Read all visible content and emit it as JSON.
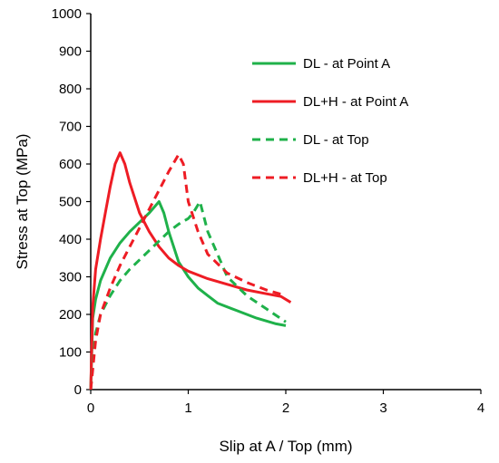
{
  "chart_data": {
    "type": "line",
    "title": "",
    "xlabel": "Slip at A / Top (mm)",
    "ylabel": "Stress  at Top (MPa)",
    "xlim": [
      0,
      4
    ],
    "ylim": [
      0,
      1000
    ],
    "x_ticks": [
      0,
      1,
      2,
      3,
      4
    ],
    "y_ticks": [
      0,
      100,
      200,
      300,
      400,
      500,
      600,
      700,
      800,
      900,
      1000
    ],
    "grid": false,
    "legend_position": "top-right",
    "series": [
      {
        "name": "DL - at Point A",
        "color": "#1FB14A",
        "dash": "solid",
        "points": [
          [
            0,
            0
          ],
          [
            0.02,
            190
          ],
          [
            0.05,
            240
          ],
          [
            0.1,
            290
          ],
          [
            0.2,
            350
          ],
          [
            0.3,
            390
          ],
          [
            0.4,
            420
          ],
          [
            0.5,
            445
          ],
          [
            0.6,
            470
          ],
          [
            0.7,
            500
          ],
          [
            0.75,
            470
          ],
          [
            0.8,
            420
          ],
          [
            0.9,
            340
          ],
          [
            1.0,
            300
          ],
          [
            1.1,
            270
          ],
          [
            1.2,
            250
          ],
          [
            1.3,
            230
          ],
          [
            1.5,
            210
          ],
          [
            1.7,
            190
          ],
          [
            1.9,
            175
          ],
          [
            2.0,
            170
          ]
        ]
      },
      {
        "name": "DL+H - at Point A",
        "color": "#EE1C24",
        "dash": "solid",
        "points": [
          [
            0,
            0
          ],
          [
            0.02,
            220
          ],
          [
            0.05,
            320
          ],
          [
            0.1,
            400
          ],
          [
            0.15,
            470
          ],
          [
            0.2,
            540
          ],
          [
            0.25,
            600
          ],
          [
            0.3,
            630
          ],
          [
            0.35,
            600
          ],
          [
            0.4,
            550
          ],
          [
            0.5,
            470
          ],
          [
            0.6,
            420
          ],
          [
            0.7,
            380
          ],
          [
            0.8,
            350
          ],
          [
            0.9,
            330
          ],
          [
            1.0,
            315
          ],
          [
            1.2,
            295
          ],
          [
            1.4,
            280
          ],
          [
            1.6,
            265
          ],
          [
            1.8,
            255
          ],
          [
            1.95,
            248
          ],
          [
            2.05,
            232
          ]
        ]
      },
      {
        "name": "DL - at Top",
        "color": "#1FB14A",
        "dash": "dashed",
        "points": [
          [
            0,
            0
          ],
          [
            0.05,
            150
          ],
          [
            0.1,
            200
          ],
          [
            0.2,
            250
          ],
          [
            0.3,
            290
          ],
          [
            0.4,
            320
          ],
          [
            0.5,
            345
          ],
          [
            0.6,
            370
          ],
          [
            0.7,
            395
          ],
          [
            0.8,
            420
          ],
          [
            0.9,
            440
          ],
          [
            1.0,
            455
          ],
          [
            1.05,
            470
          ],
          [
            1.12,
            500
          ],
          [
            1.2,
            420
          ],
          [
            1.3,
            360
          ],
          [
            1.4,
            300
          ],
          [
            1.6,
            250
          ],
          [
            1.8,
            215
          ],
          [
            2.0,
            180
          ]
        ]
      },
      {
        "name": "DL+H - at Top",
        "color": "#EE1C24",
        "dash": "dashed",
        "points": [
          [
            0,
            0
          ],
          [
            0.05,
            130
          ],
          [
            0.1,
            200
          ],
          [
            0.2,
            270
          ],
          [
            0.3,
            330
          ],
          [
            0.4,
            380
          ],
          [
            0.5,
            430
          ],
          [
            0.6,
            480
          ],
          [
            0.7,
            530
          ],
          [
            0.8,
            580
          ],
          [
            0.9,
            625
          ],
          [
            0.95,
            600
          ],
          [
            1.0,
            500
          ],
          [
            1.1,
            420
          ],
          [
            1.2,
            360
          ],
          [
            1.4,
            310
          ],
          [
            1.6,
            285
          ],
          [
            1.8,
            265
          ],
          [
            2.0,
            250
          ]
        ]
      }
    ]
  }
}
